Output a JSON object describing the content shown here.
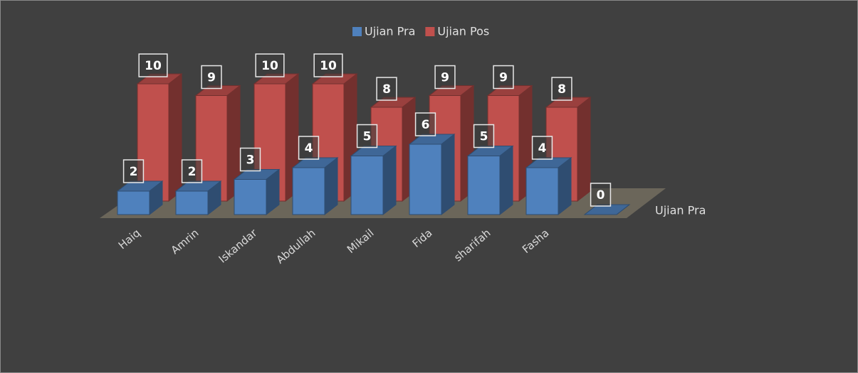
{
  "chart_data": {
    "type": "bar",
    "categories": [
      "Haiq",
      "Amrin",
      "Iskandar",
      "Abdullah",
      "Mikail",
      "Fida",
      "sharifah",
      "Fasha",
      null
    ],
    "series": [
      {
        "name": "Ujian Pra",
        "color": "#4f81bd",
        "values": [
          2,
          2,
          3,
          4,
          5,
          6,
          5,
          4,
          0
        ]
      },
      {
        "name": "Ujian Pos",
        "color": "#c0504d",
        "values": [
          10,
          9,
          10,
          10,
          8,
          9,
          9,
          8,
          null
        ]
      }
    ],
    "depth_axis_label": "Ujian Pra",
    "legend": "top"
  }
}
